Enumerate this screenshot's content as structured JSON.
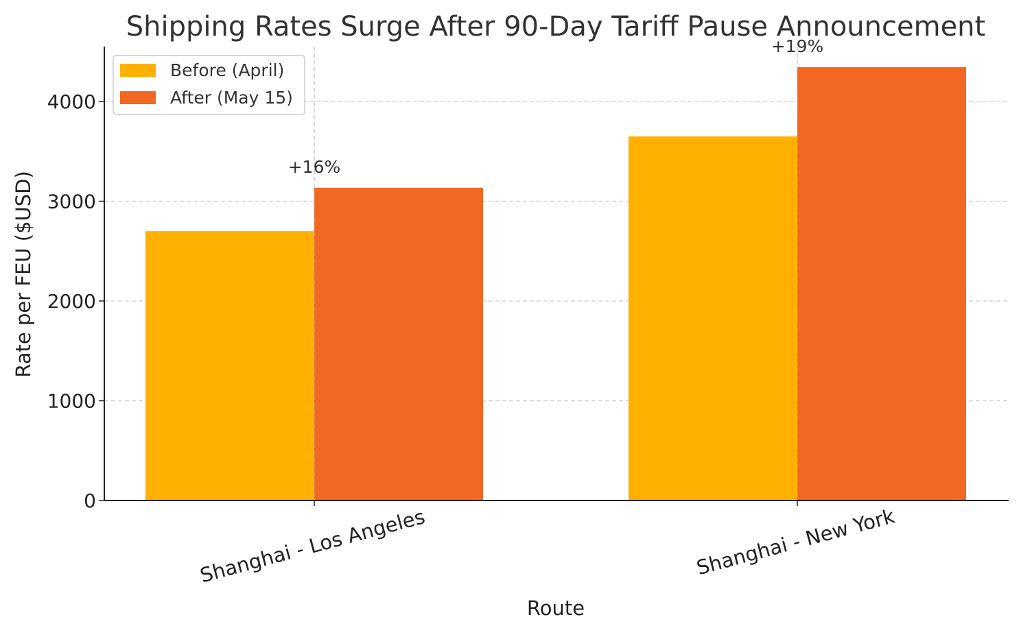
{
  "chart_data": {
    "type": "bar",
    "title": "Shipping Rates Surge After 90-Day Tariff Pause Announcement",
    "xlabel": "Route",
    "ylabel": "Rate per FEU ($USD)",
    "categories": [
      "Shanghai - Los Angeles",
      "Shanghai - New York"
    ],
    "series": [
      {
        "name": "Before (April)",
        "values": [
          2700,
          3650
        ],
        "color": "#FFB000"
      },
      {
        "name": "After (May 15)",
        "values": [
          3135,
          4345
        ],
        "color": "#F26822"
      }
    ],
    "annotations": [
      "+16%",
      "+19%"
    ],
    "ylim": [
      0,
      4550
    ],
    "yticks": [
      0,
      1000,
      2000,
      3000,
      4000
    ],
    "grid": true,
    "legend_position": "top-left"
  }
}
